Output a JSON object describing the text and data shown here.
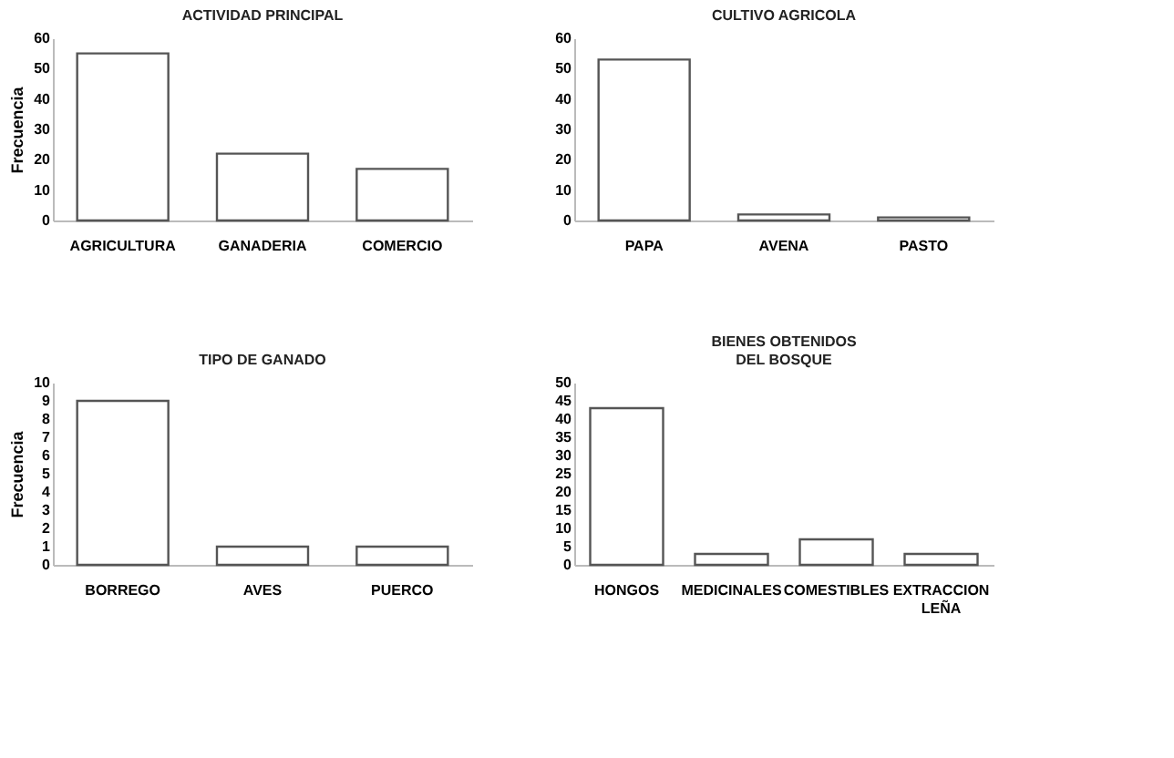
{
  "chart_data": [
    {
      "type": "bar",
      "title": "ACTIVIDAD PRINCIPAL",
      "ylabel": "Frecuencia",
      "categories": [
        "AGRICULTURA",
        "GANADERIA",
        "COMERCIO"
      ],
      "values": [
        55,
        22,
        17
      ],
      "color": "#ffffff",
      "ylim": [
        0,
        60
      ],
      "yticks": [
        0,
        10,
        20,
        30,
        40,
        50,
        60
      ]
    },
    {
      "type": "bar",
      "title": "CULTIVO AGRICOLA",
      "categories": [
        "PAPA",
        "AVENA",
        "PASTO"
      ],
      "values": [
        53,
        2,
        1
      ],
      "color": "#ffffff",
      "ylim": [
        0,
        60
      ],
      "yticks": [
        0,
        10,
        20,
        30,
        40,
        50,
        60
      ]
    },
    {
      "type": "bar",
      "title": "TIPO DE GANADO",
      "ylabel": "Frecuencia",
      "categories": [
        "BORREGO",
        "AVES",
        "PUERCO"
      ],
      "values": [
        9,
        1,
        1
      ],
      "color": "#ffffff",
      "ylim": [
        0,
        10
      ],
      "yticks": [
        0,
        1,
        2,
        3,
        4,
        5,
        6,
        7,
        8,
        9,
        10
      ]
    },
    {
      "type": "bar",
      "title": "BIENES OBTENIDOS\nDEL BOSQUE",
      "categories": [
        "HONGOS",
        "MEDICINALES",
        "COMESTIBLES",
        "EXTRACCION\nLEÑA"
      ],
      "values": [
        43,
        3,
        7,
        3
      ],
      "color": "#ffffff",
      "ylim": [
        0,
        50
      ],
      "yticks": [
        0,
        5,
        10,
        15,
        20,
        25,
        30,
        35,
        40,
        45,
        50
      ]
    }
  ]
}
